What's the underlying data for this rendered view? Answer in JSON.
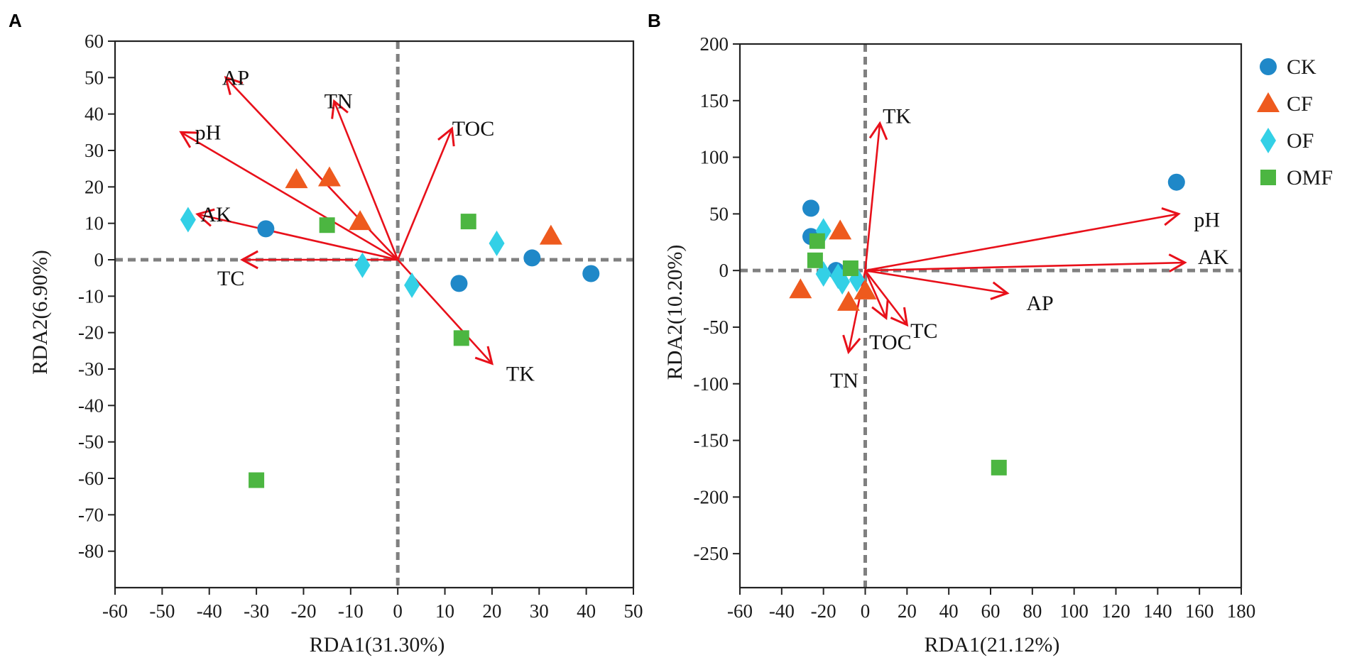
{
  "colors": {
    "CK": "#1f88c8",
    "CF": "#ee5a1e",
    "OF": "#33d0e6",
    "OMF": "#4cb641",
    "arrow": "#e8101a",
    "zero_line": "#808080",
    "axis": "#222222"
  },
  "legend": {
    "items": [
      {
        "key": "CK",
        "label": "CK",
        "shape": "circle"
      },
      {
        "key": "CF",
        "label": "CF",
        "shape": "triangle"
      },
      {
        "key": "OF",
        "label": "OF",
        "shape": "diamond"
      },
      {
        "key": "OMF",
        "label": "OMF",
        "shape": "square"
      }
    ]
  },
  "chart_data": [
    {
      "type": "scatter",
      "panel": "A",
      "xlabel": "RDA1(31.30%)",
      "ylabel": "RDA2(6.90%)",
      "xlim": [
        -60,
        50
      ],
      "ylim": [
        -90,
        60
      ],
      "xticks": [
        -60,
        -50,
        -40,
        -30,
        -20,
        -10,
        0,
        10,
        20,
        30,
        40,
        50
      ],
      "yticks": [
        60,
        50,
        40,
        30,
        20,
        10,
        0,
        -10,
        -20,
        -30,
        -40,
        -50,
        -60,
        -70,
        -80
      ],
      "series": [
        {
          "name": "CK",
          "points": [
            [
              -28,
              8.5
            ],
            [
              13,
              -6.5
            ],
            [
              28.5,
              0.5
            ],
            [
              41,
              -3.8
            ]
          ]
        },
        {
          "name": "CF",
          "points": [
            [
              -21.5,
              22
            ],
            [
              -14.5,
              22.5
            ],
            [
              -8,
              10.5
            ],
            [
              32.5,
              6.5
            ]
          ]
        },
        {
          "name": "OF",
          "points": [
            [
              -44.5,
              11
            ],
            [
              -7.5,
              -1.5
            ],
            [
              3,
              -7
            ],
            [
              21,
              4.5
            ]
          ]
        },
        {
          "name": "OMF",
          "points": [
            [
              -15,
              9.5
            ],
            [
              15,
              10.5
            ],
            [
              13.5,
              -21.5
            ],
            [
              -30,
              -60.5
            ]
          ]
        }
      ],
      "arrows": [
        {
          "label": "AP",
          "end": [
            -36.5,
            50
          ]
        },
        {
          "label": "TN",
          "end": [
            -13.5,
            43.5
          ]
        },
        {
          "label": "TOC",
          "end": [
            11.5,
            36
          ]
        },
        {
          "label": "pH",
          "end": [
            -46,
            35
          ]
        },
        {
          "label": "AK",
          "end": [
            -42.5,
            12.5
          ]
        },
        {
          "label": "TC",
          "end": [
            -33,
            0
          ]
        },
        {
          "label": "TK",
          "end": [
            20,
            -28.5
          ]
        }
      ]
    },
    {
      "type": "scatter",
      "panel": "B",
      "xlabel": "RDA1(21.12%)",
      "ylabel": "RDA2(10.20%)",
      "xlim": [
        -60,
        180
      ],
      "ylim": [
        -280,
        200
      ],
      "xticks": [
        -60,
        -40,
        -20,
        0,
        20,
        40,
        60,
        80,
        100,
        120,
        140,
        160,
        180
      ],
      "yticks": [
        200,
        150,
        100,
        50,
        0,
        -50,
        -100,
        -150,
        -200,
        -250
      ],
      "series": [
        {
          "name": "CK",
          "points": [
            [
              149,
              78
            ],
            [
              -26,
              55
            ],
            [
              -26,
              30
            ],
            [
              -14,
              0
            ]
          ]
        },
        {
          "name": "CF",
          "points": [
            [
              -12,
              35
            ],
            [
              -31,
              -17
            ],
            [
              -8,
              -28
            ],
            [
              0,
              -18
            ]
          ]
        },
        {
          "name": "OF",
          "points": [
            [
              -20,
              35
            ],
            [
              -20,
              -3
            ],
            [
              -13,
              -5
            ],
            [
              -11,
              -10
            ],
            [
              -4,
              -8
            ]
          ]
        },
        {
          "name": "OMF",
          "points": [
            [
              -23,
              26
            ],
            [
              -24,
              9
            ],
            [
              -7,
              2
            ],
            [
              64,
              -174
            ]
          ]
        }
      ],
      "arrows": [
        {
          "label": "TK",
          "end": [
            7,
            130
          ]
        },
        {
          "label": "pH",
          "end": [
            150,
            50
          ]
        },
        {
          "label": "AK",
          "end": [
            153,
            7
          ]
        },
        {
          "label": "AP",
          "end": [
            68,
            -20
          ]
        },
        {
          "label": "TC",
          "end": [
            20,
            -48
          ]
        },
        {
          "label": "TOC",
          "end": [
            10,
            -42
          ]
        },
        {
          "label": "TN",
          "end": [
            -8,
            -72
          ]
        }
      ]
    }
  ]
}
